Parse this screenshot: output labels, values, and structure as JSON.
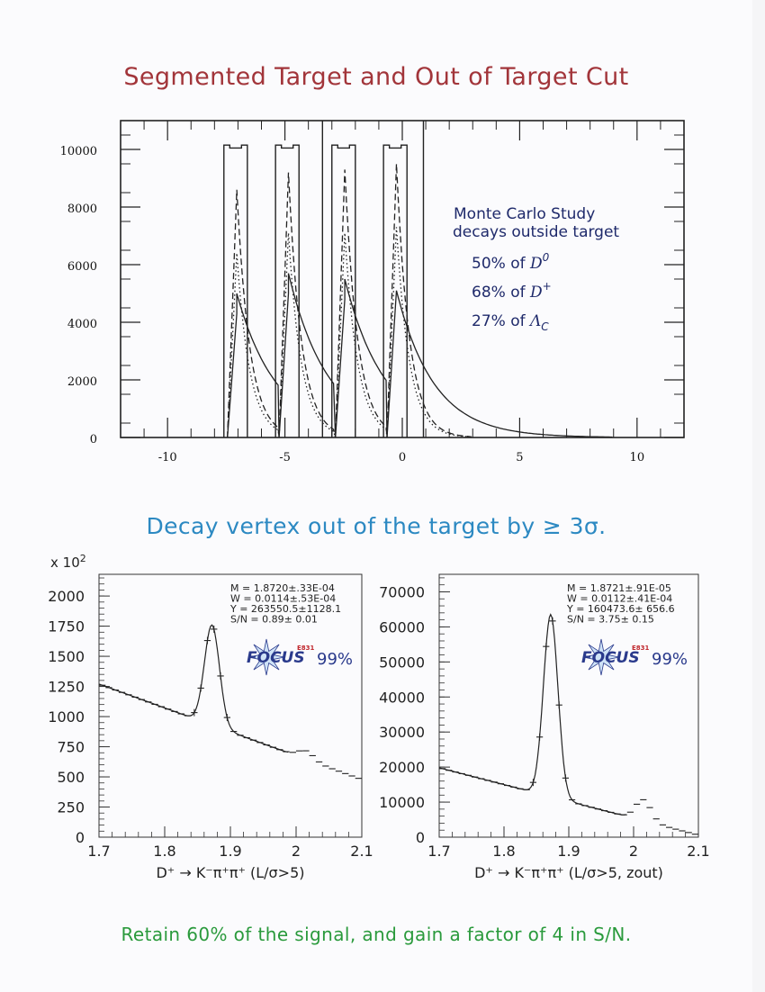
{
  "main_title": "Segmented Target and Out of Target Cut",
  "sub_title": "Decay vertex out of the target by ≥ 3σ.",
  "footer_note": "Retain 60% of the signal, and gain a factor of 4 in S/N.",
  "colors": {
    "main_title": "#a2353a",
    "sub_title": "#2c89c2",
    "footer_note": "#2a9a3c",
    "annotation": "#1f2a6b",
    "logo_blue": "#2a3a8c",
    "logo_red": "#c0262c"
  },
  "chart_data": [
    {
      "type": "histogram",
      "title": "",
      "xlabel": "",
      "ylabel": "",
      "xlim": [
        -12,
        12
      ],
      "ylim": [
        0,
        11000
      ],
      "x_ticks": [
        -10,
        -5,
        0,
        5,
        10
      ],
      "y_ticks": [
        0,
        2000,
        4000,
        6000,
        8000,
        10000
      ],
      "target_segments": [
        [
          -7.6,
          -6.6
        ],
        [
          -5.4,
          -4.4
        ],
        [
          -3.0,
          -2.0
        ],
        [
          -0.8,
          0.2
        ]
      ],
      "cut_lines": [
        -3.4,
        0.9
      ],
      "series": [
        {
          "style": "solid",
          "peaks": [
            4300,
            5000,
            4800,
            5100
          ],
          "tail_end": 9
        },
        {
          "style": "dashed",
          "peaks": [
            8600,
            9200,
            9300,
            9500
          ],
          "tail_end": 3
        },
        {
          "style": "dotted",
          "peaks": [
            6400,
            7100,
            7100,
            7300
          ],
          "tail_end": 3
        }
      ],
      "annotation": {
        "lines": [
          "Monte Carlo Study",
          "decays outside target"
        ],
        "items": [
          {
            "pct": "50% of ",
            "particle": "D",
            "script": "0",
            "script_type": "sup"
          },
          {
            "pct": "68% of ",
            "particle": "D",
            "script": "+",
            "script_type": "sup"
          },
          {
            "pct": "27% of ",
            "particle": "Λ",
            "script": "C",
            "script_type": "sub"
          }
        ]
      }
    },
    {
      "type": "histogram",
      "xlabel": "D⁺ → K⁻π⁺π⁺ (L/σ>5)",
      "multiplier": "x 10",
      "multiplier_exp": "2",
      "xlim": [
        1.7,
        2.1
      ],
      "ylim": [
        0,
        2180
      ],
      "x_ticks": [
        1.7,
        1.8,
        1.9,
        2.0,
        2.1
      ],
      "x_tick_labels": [
        "1.7",
        "1.8",
        "1.9",
        "2",
        "2.1"
      ],
      "y_ticks": [
        0,
        250,
        500,
        750,
        1000,
        1250,
        1500,
        1750,
        2000
      ],
      "fit": {
        "M": 1.872,
        "W": 0.0114,
        "background_at_start": 1270,
        "background_slope": -1980,
        "peak_height": 830,
        "peak2_height": 70,
        "peak2_mean": 2.015
      },
      "stats": [
        "M = 1.8720±.33E-04",
        "W = 0.0114±.53E-04",
        "Y = 263550.5±1128.1",
        "S/N = 0.89± 0.01"
      ],
      "logo": {
        "e831": "E831",
        "text": "FOCUS",
        "percent": "99%"
      }
    },
    {
      "type": "histogram",
      "xlabel": "D⁺ → K⁻π⁺π⁺ (L/σ>5, zout)",
      "xlim": [
        1.7,
        2.1
      ],
      "ylim": [
        0,
        75000
      ],
      "x_ticks": [
        1.7,
        1.8,
        1.9,
        2.0,
        2.1
      ],
      "x_tick_labels": [
        "1.7",
        "1.8",
        "1.9",
        "2",
        "2.1"
      ],
      "y_ticks": [
        0,
        10000,
        20000,
        30000,
        40000,
        50000,
        60000,
        70000
      ],
      "fit": {
        "M": 1.8721,
        "W": 0.0112,
        "background_at_start": 19800,
        "background_slope": -48000,
        "peak_height": 52000,
        "peak2_height": 6000,
        "peak2_mean": 2.015
      },
      "stats": [
        "M = 1.8721±.91E-05",
        "W = 0.0112±.41E-04",
        "Y =  160473.6± 656.6",
        "S/N =  3.75± 0.15"
      ],
      "logo": {
        "e831": "E831",
        "text": "FOCUS",
        "percent": "99%"
      }
    }
  ]
}
